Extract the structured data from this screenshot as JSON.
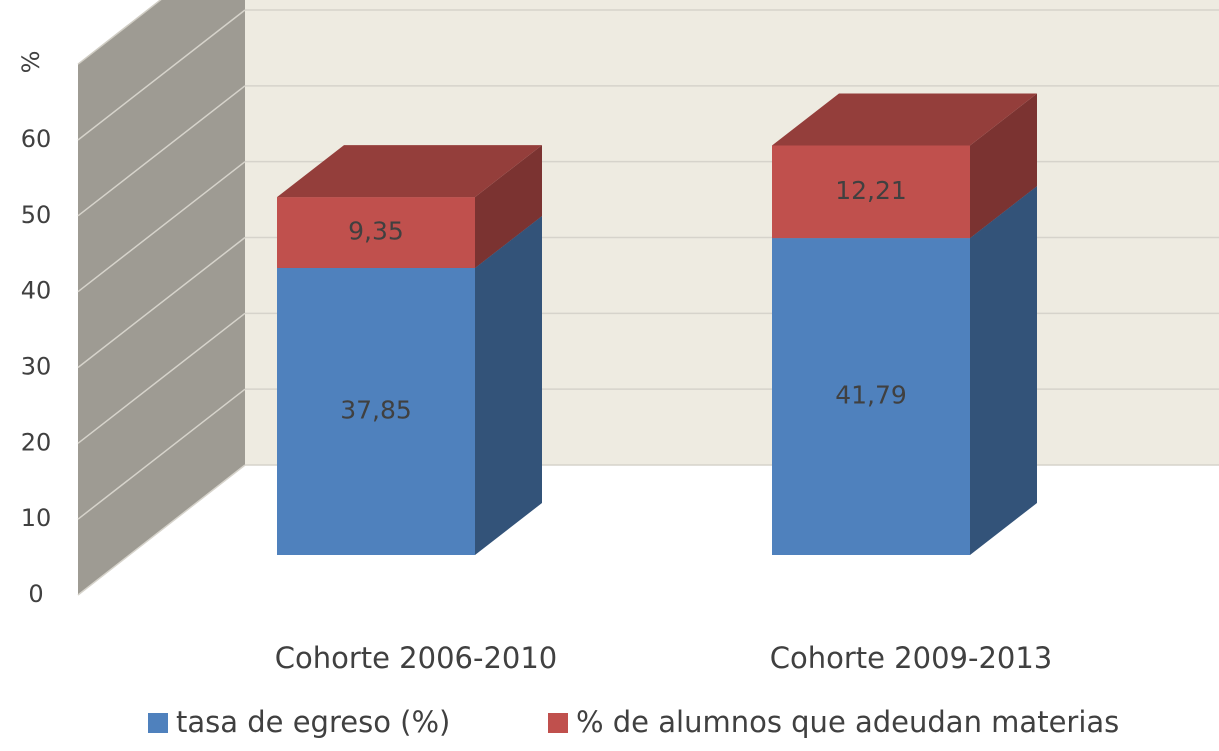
{
  "chart_data": {
    "type": "bar3d_stacked",
    "y_label": "%",
    "categories": [
      "Cohorte 2006-2010",
      "Cohorte 2009-2013"
    ],
    "series": [
      {
        "name": "tasa de egreso (%)",
        "color": "#4f81bd",
        "values": [
          37.85,
          41.79
        ],
        "value_labels": [
          "37,85",
          "41,79"
        ]
      },
      {
        "name": "% de alumnos que adeudan materias",
        "color": "#c0504d",
        "values": [
          9.35,
          12.21
        ],
        "value_labels": [
          "9,35",
          "12,21"
        ]
      }
    ],
    "ylim": [
      0,
      70
    ],
    "yticks": [
      0,
      10,
      20,
      30,
      40,
      50,
      60
    ],
    "grid": true,
    "legend": "bottom"
  }
}
